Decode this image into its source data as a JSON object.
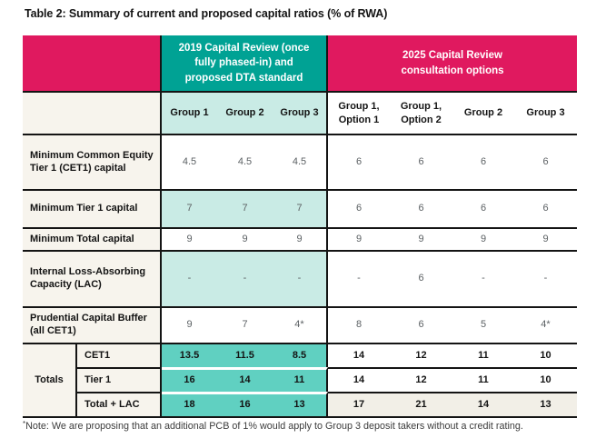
{
  "title": "Table 2: Summary of current and proposed capital ratios (% of RWA)",
  "colors": {
    "pink": "#e0195f",
    "teal_dark": "#00a294",
    "teal_light": "#c9ebe5",
    "teal_totals": "#60d0c1",
    "label_cream": "#f7f4ed",
    "value_gray": "#5c6164",
    "line_black": "#141414"
  },
  "table": {
    "band_2019": "2019 Capital Review (once fully phased-in) and proposed DTA standard",
    "band_2025": "2025 Capital Review consultation options",
    "group_headers_2019": [
      "Group 1",
      "Group 2",
      "Group 3"
    ],
    "group_headers_2025": [
      "Group 1, Option 1",
      "Group 1, Option 2",
      "Group 2",
      "Group 3"
    ],
    "rows": [
      {
        "label": "Minimum Common Equity Tier 1 (CET1) capital",
        "v2019": [
          "4.5",
          "4.5",
          "4.5"
        ],
        "v2025": [
          "6",
          "6",
          "6",
          "6"
        ]
      },
      {
        "label": "Minimum Tier 1 capital",
        "v2019": [
          "7",
          "7",
          "7"
        ],
        "v2025": [
          "6",
          "6",
          "6",
          "6"
        ]
      },
      {
        "label": "Minimum Total capital",
        "v2019": [
          "9",
          "9",
          "9"
        ],
        "v2025": [
          "9",
          "9",
          "9",
          "9"
        ]
      },
      {
        "label": "Internal Loss-Absorbing Capacity (LAC)",
        "v2019": [
          "-",
          "-",
          "-"
        ],
        "v2025": [
          "-",
          "6",
          "-",
          "-"
        ]
      },
      {
        "label": "Prudential Capital Buffer (all CET1)",
        "v2019": [
          "9",
          "7",
          "4*"
        ],
        "v2025": [
          "8",
          "6",
          "5",
          "4*"
        ]
      }
    ],
    "totals": {
      "label": "Totals",
      "rows": [
        {
          "label": "CET1",
          "v2019": [
            "13.5",
            "11.5",
            "8.5"
          ],
          "v2025": [
            "14",
            "12",
            "11",
            "10"
          ]
        },
        {
          "label": "Tier 1",
          "v2019": [
            "16",
            "14",
            "11"
          ],
          "v2025": [
            "14",
            "12",
            "11",
            "10"
          ]
        },
        {
          "label": "Total + LAC",
          "v2019": [
            "18",
            "16",
            "13"
          ],
          "v2025": [
            "17",
            "21",
            "14",
            "13"
          ]
        }
      ]
    }
  },
  "note": {
    "marker": "*",
    "text": "Note: We are proposing that an additional PCB of 1% would apply to Group 3 deposit takers without a credit rating."
  }
}
